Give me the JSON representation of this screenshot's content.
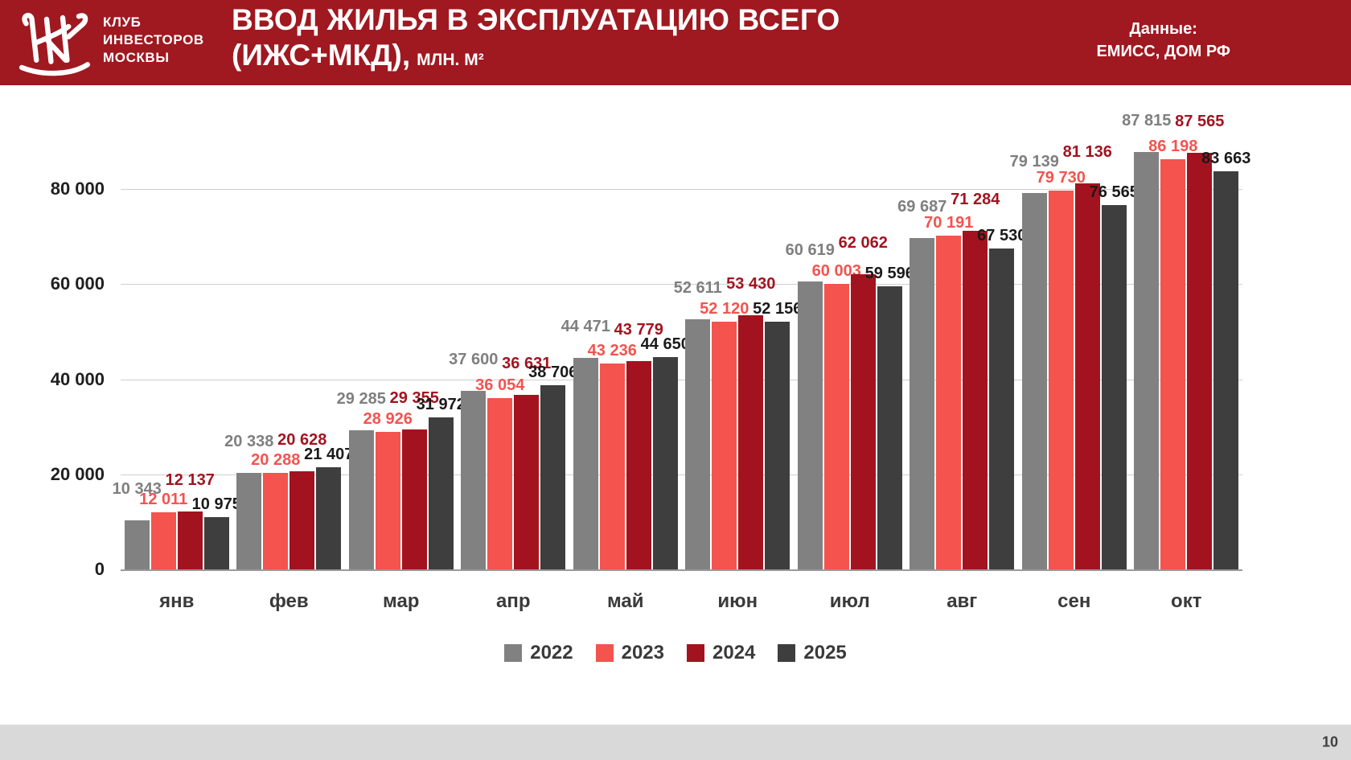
{
  "header": {
    "club_name_line1": "КЛУБ",
    "club_name_line2": "ИНВЕСТОРОВ",
    "club_name_line3": "МОСКВЫ",
    "title_line1": "ВВОД ЖИЛЬЯ В ЭКСПЛУАТАЦИЮ ВСЕГО",
    "title_line2": "(ИЖС+МКД),",
    "title_unit": "МЛН. М²",
    "source_label": "Данные:",
    "source_value": "ЕМИСС, ДОМ РФ",
    "bg_color": "#A01820"
  },
  "footer": {
    "page_number": "10",
    "bg_color": "#D9D9D9"
  },
  "chart_data": {
    "type": "bar",
    "title": "ВВОД ЖИЛЬЯ В ЭКСПЛУАТАЦИЮ ВСЕГО (ИЖС+МКД), млн. м²",
    "categories": [
      "янв",
      "фев",
      "мар",
      "апр",
      "май",
      "июн",
      "июл",
      "авг",
      "сен",
      "окт"
    ],
    "series": [
      {
        "name": "2022",
        "color": "#818181",
        "label_color": "#7F7F7F",
        "values": [
          10343,
          20338,
          29285,
          37600,
          44471,
          52611,
          60619,
          69687,
          79139,
          87815
        ]
      },
      {
        "name": "2023",
        "color": "#F4534E",
        "label_color": "#F4534E",
        "values": [
          12011,
          20288,
          28926,
          36054,
          43236,
          52120,
          60003,
          70191,
          79730,
          86198
        ]
      },
      {
        "name": "2024",
        "color": "#A3131F",
        "label_color": "#A3131F",
        "values": [
          12137,
          20628,
          29355,
          36631,
          43779,
          53430,
          62062,
          71284,
          81136,
          87565
        ]
      },
      {
        "name": "2025",
        "color": "#3E3E3E",
        "label_color": "#1A1A1A",
        "values": [
          10975,
          21407,
          31972,
          38706,
          44650,
          52156,
          59596,
          67530,
          76565,
          83663
        ]
      }
    ],
    "y_ticks": [
      0,
      20000,
      40000,
      60000,
      80000
    ],
    "y_tick_labels": [
      "0",
      "20 000",
      "40 000",
      "60 000",
      "80 000"
    ],
    "ylim": [
      0,
      95000
    ],
    "grid": true,
    "legend_position": "bottom",
    "data_labels": true
  }
}
